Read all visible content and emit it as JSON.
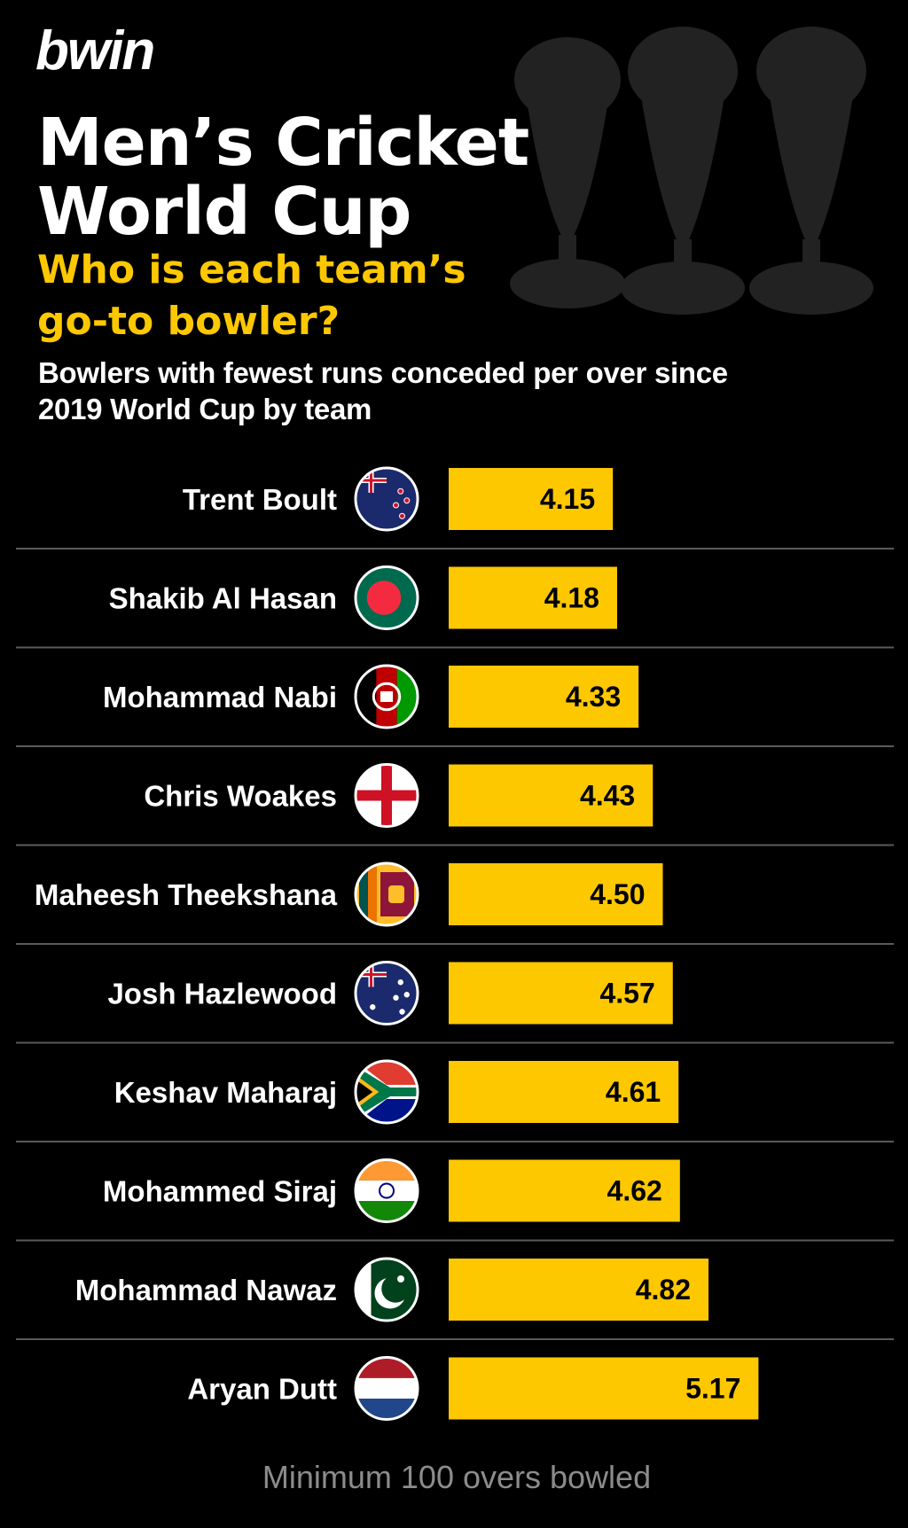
{
  "brand": "bwin",
  "title_line1": "Men’s Cricket",
  "title_line2": "World Cup",
  "subtitle_line1": "Who is each team’s",
  "subtitle_line2": "go-to bowler?",
  "description_line1": "Bowlers with fewest runs conceded per over since",
  "description_line2": "2019 World Cup by team",
  "footnote": "Minimum 100 overs bowled",
  "colors": {
    "background": "#000000",
    "accent": "#fdc800",
    "text": "#ffffff",
    "divider": "#5a5a5a",
    "footnote": "#8c8c8c"
  },
  "chart_data": {
    "type": "bar",
    "orientation": "horizontal",
    "categories": [
      "Trent Boult",
      "Shakib Al Hasan",
      "Mohammad Nabi",
      "Chris Woakes",
      "Maheesh Theekshana",
      "Josh Hazlewood",
      "Keshav Maharaj",
      "Mohammed Siraj",
      "Mohammad Nawaz",
      "Aryan Dutt"
    ],
    "values": [
      4.15,
      4.18,
      4.33,
      4.43,
      4.5,
      4.57,
      4.61,
      4.62,
      4.82,
      5.17
    ],
    "value_labels": [
      "4.15",
      "4.18",
      "4.33",
      "4.43",
      "4.50",
      "4.57",
      "4.61",
      "4.62",
      "4.82",
      "5.17"
    ],
    "flags": [
      "new-zealand-flag-icon",
      "bangladesh-flag-icon",
      "afghanistan-flag-icon",
      "england-flag-icon",
      "sri-lanka-flag-icon",
      "australia-flag-icon",
      "south-africa-flag-icon",
      "india-flag-icon",
      "pakistan-flag-icon",
      "netherlands-flag-icon"
    ],
    "bar_color": "#fdc800",
    "grid": false
  }
}
